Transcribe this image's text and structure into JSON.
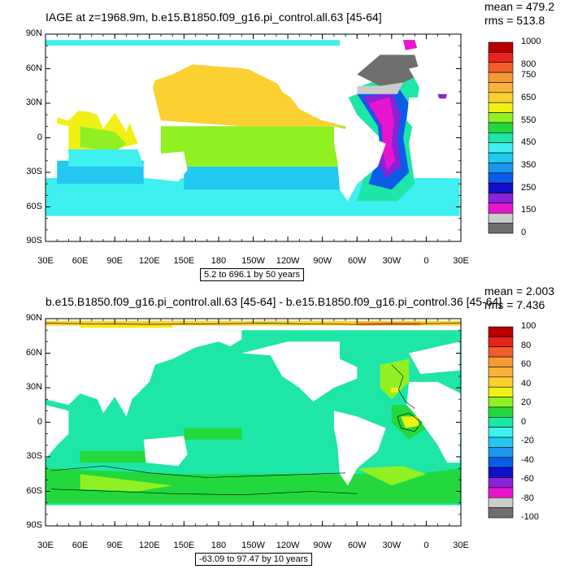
{
  "chart_data": [
    {
      "type": "heatmap",
      "title": "IAGE at z=1968.9m, b.e15.B1850.f09_g16.pi_control.all.63 [45-64]",
      "stats": {
        "mean": "mean = 479.2",
        "rms": "rms = 513.8"
      },
      "xticks": [
        "30E",
        "60E",
        "90E",
        "120E",
        "150E",
        "180",
        "150W",
        "120W",
        "90W",
        "60W",
        "30W",
        "0",
        "30E"
      ],
      "yticks": [
        "90N",
        "60N",
        "30N",
        "0",
        "30S",
        "60S",
        "90S"
      ],
      "range_label": "5.2 to 696.1 by 50 years",
      "colorbar": {
        "labels": [
          "1000",
          "",
          "800",
          "750",
          "",
          "650",
          "",
          "550",
          "",
          "450",
          "",
          "350",
          "",
          "250",
          "",
          "150",
          "",
          "0"
        ],
        "colors": [
          "#b40000",
          "#e8231d",
          "#f25d2b",
          "#f59a33",
          "#f8b23b",
          "#fbd030",
          "#f0f016",
          "#90f022",
          "#22d83c",
          "#1ee6a6",
          "#3ef0ef",
          "#22c8f0",
          "#1b96ee",
          "#0b5ce8",
          "#1010cc",
          "#8a22d8",
          "#e815d0",
          "#cccccc",
          "#6e6e6e"
        ]
      },
      "ocean_regions": [
        {
          "name": "north-pacific",
          "level": 650
        },
        {
          "name": "equatorial-pacific",
          "level": 550
        },
        {
          "name": "south-pacific",
          "level": 450
        },
        {
          "name": "southern-ocean",
          "level": 400
        },
        {
          "name": "indian-ocean",
          "level": 450
        },
        {
          "name": "north-atlantic",
          "level": 150
        },
        {
          "name": "greenland-nordic",
          "level": 0
        },
        {
          "name": "south-atlantic",
          "level": 300
        },
        {
          "name": "arctic-strip",
          "level": 450
        }
      ]
    },
    {
      "type": "heatmap",
      "title": "b.e15.B1850.f09_g16.pi_control.all.63 [45-64] - b.e15.B1850.f09_g16.pi_control.36 [45-64]",
      "stats": {
        "mean": "mean = 2.003",
        "rms": "rms = 7.436"
      },
      "xticks": [
        "30E",
        "60E",
        "90E",
        "120E",
        "150E",
        "180",
        "150W",
        "120W",
        "90W",
        "60W",
        "30W",
        "0",
        "30E"
      ],
      "yticks": [
        "90N",
        "60N",
        "30N",
        "0",
        "30S",
        "60S",
        "90S"
      ],
      "range_label": "-63.09 to 97.47 by 10 years",
      "colorbar": {
        "labels": [
          "100",
          "80",
          "60",
          "40",
          "20",
          "0",
          "-20",
          "-40",
          "-60",
          "-80",
          "-100"
        ],
        "colors": [
          "#b40000",
          "#e8231d",
          "#f25d2b",
          "#f59a33",
          "#f8b23b",
          "#fbd030",
          "#f0f016",
          "#90f022",
          "#22d83c",
          "#1ee6a6",
          "#3ef0ef",
          "#22c8f0",
          "#1b96ee",
          "#0b5ce8",
          "#1010cc",
          "#8a22d8",
          "#e815d0",
          "#cccccc",
          "#6e6e6e"
        ]
      },
      "ocean_regions": [
        {
          "name": "global-ocean",
          "level": 0
        },
        {
          "name": "southern-ocean",
          "level": 10
        },
        {
          "name": "arctic-strip",
          "level": 40
        },
        {
          "name": "equatorial-atlantic",
          "level": 30
        }
      ]
    }
  ]
}
